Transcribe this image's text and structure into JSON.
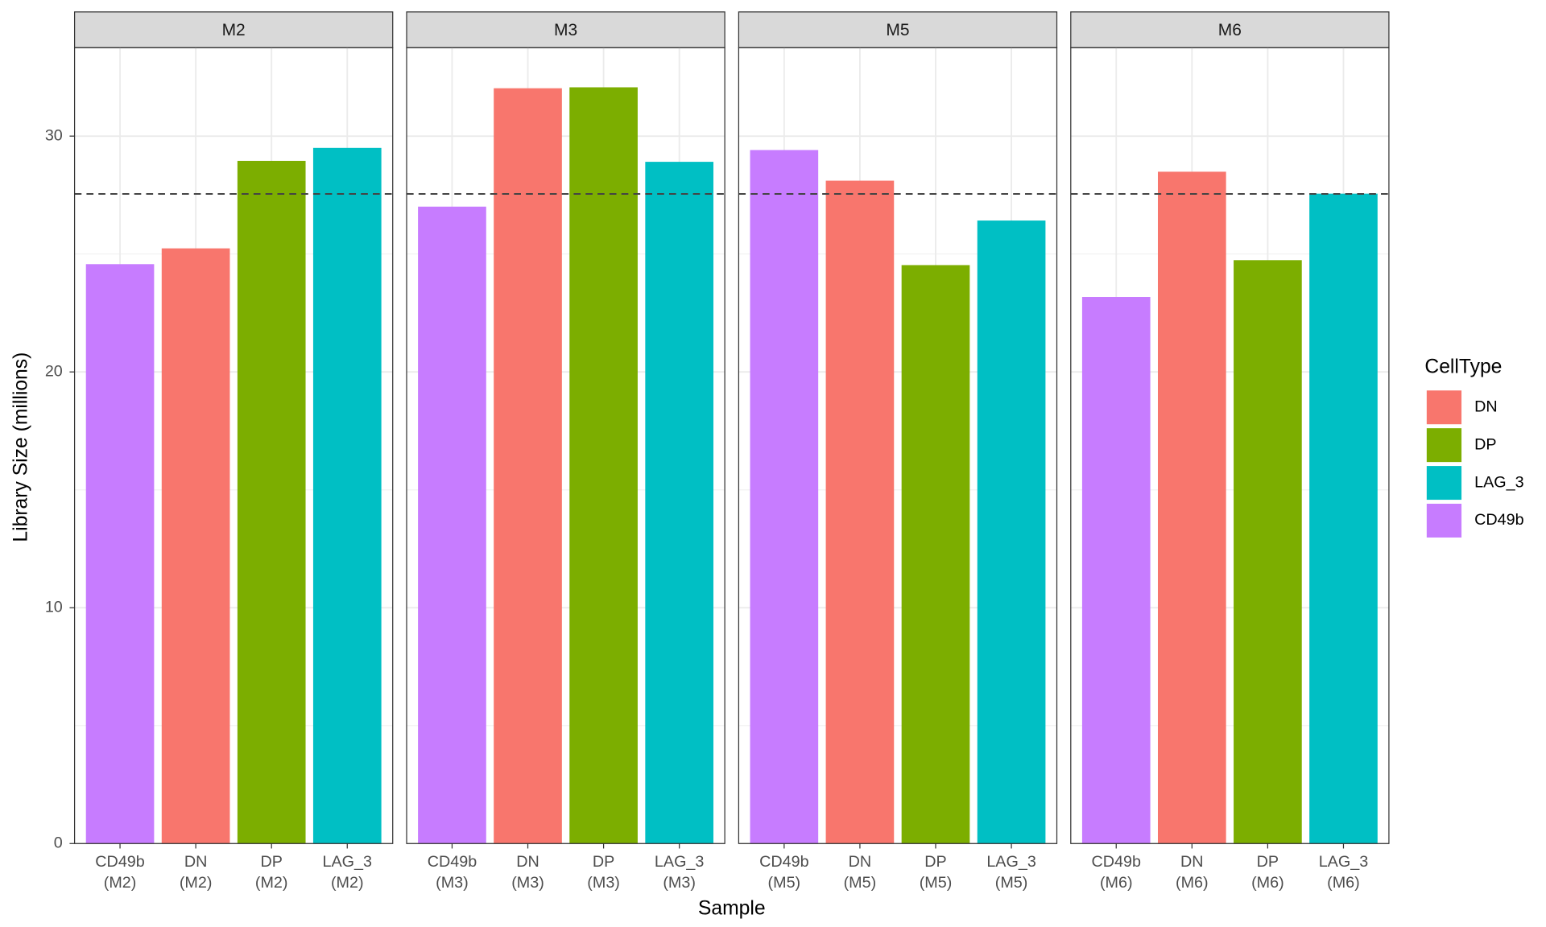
{
  "chart_data": {
    "type": "bar",
    "y_label": "Library Size (millions)",
    "x_label": "Sample",
    "legend_title": "CellType",
    "ylim": [
      0,
      33.75
    ],
    "yticks": [
      0,
      10,
      20,
      30
    ],
    "y_minor_ticks": [
      5,
      15,
      25
    ],
    "grid": true,
    "hline": 27.55,
    "facets": [
      {
        "title": "M2",
        "categories": [
          [
            "CD49b",
            "(M2)"
          ],
          [
            "DN",
            "(M2)"
          ],
          [
            "DP",
            "(M2)"
          ],
          [
            "LAG_3",
            "(M2)"
          ]
        ]
      },
      {
        "title": "M3",
        "categories": [
          [
            "CD49b",
            "(M3)"
          ],
          [
            "DN",
            "(M3)"
          ],
          [
            "DP",
            "(M3)"
          ],
          [
            "LAG_3",
            "(M3)"
          ]
        ]
      },
      {
        "title": "M5",
        "categories": [
          [
            "CD49b",
            "(M5)"
          ],
          [
            "DN",
            "(M5)"
          ],
          [
            "DP",
            "(M5)"
          ],
          [
            "LAG_3",
            "(M5)"
          ]
        ]
      },
      {
        "title": "M6",
        "categories": [
          [
            "CD49b",
            "(M6)"
          ],
          [
            "DN",
            "(M6)"
          ],
          [
            "DP",
            "(M6)"
          ],
          [
            "LAG_3",
            "(M6)"
          ]
        ]
      }
    ],
    "series": [
      {
        "name": "DN",
        "color": "#F8766D",
        "values": [
          25.24,
          32.03,
          28.11,
          28.49
        ]
      },
      {
        "name": "DP",
        "color": "#7CAE00",
        "values": [
          28.95,
          32.07,
          24.53,
          24.74
        ]
      },
      {
        "name": "LAG_3",
        "color": "#00BFC4",
        "values": [
          29.5,
          28.91,
          26.42,
          27.56
        ]
      },
      {
        "name": "CD49b",
        "color": "#C77CFF",
        "values": [
          24.57,
          27.01,
          29.41,
          23.18
        ]
      }
    ]
  }
}
